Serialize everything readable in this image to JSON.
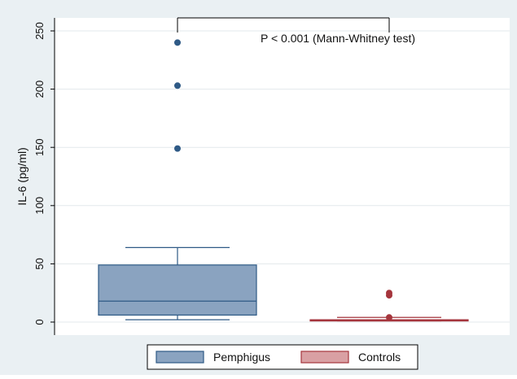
{
  "chart_data": {
    "type": "box",
    "ylabel": "IL-6 (pg/ml)",
    "ylim": [
      0,
      260
    ],
    "yticks": [
      0,
      50,
      100,
      150,
      200,
      250
    ],
    "grid": true,
    "legend_position": "bottom",
    "annotation": "P < 0.001 (Mann-Whitney test)",
    "series": [
      {
        "name": "Pemphigus",
        "color": "#8aa3c0",
        "stroke": "#2f5a86",
        "min": 2,
        "q1": 6,
        "median": 18,
        "q3": 49,
        "max": 64,
        "outliers": [
          149,
          203,
          240
        ]
      },
      {
        "name": "Controls",
        "color": "#d9a0a3",
        "stroke": "#a5353c",
        "min": 1,
        "q1": 1,
        "median": 1.5,
        "q3": 2,
        "max": 4,
        "outliers": [
          4,
          23,
          25
        ]
      }
    ]
  }
}
